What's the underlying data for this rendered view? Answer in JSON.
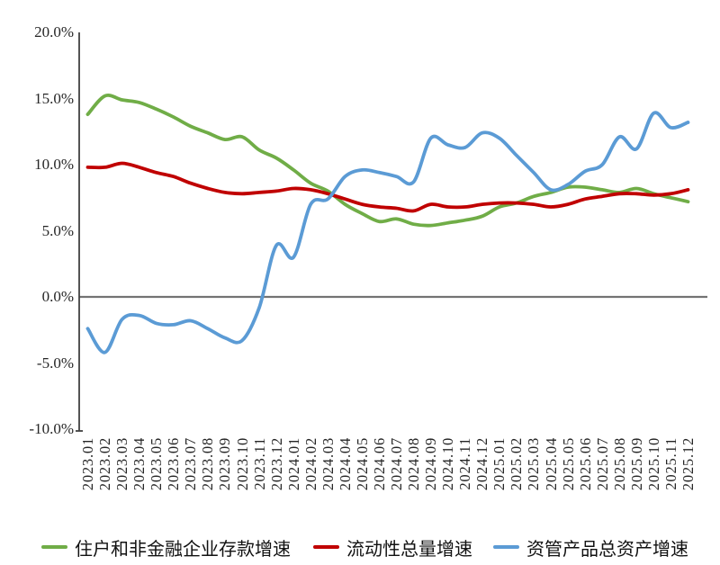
{
  "chart_data": {
    "type": "line",
    "title": "",
    "grid": false,
    "smoothed_lines": true,
    "legend_position": "bottom",
    "ylim": [
      -10,
      20
    ],
    "y_tick_labels": [
      "20.0%",
      "15.0%",
      "10.0%",
      "5.0%",
      "0.0%",
      "-5.0%",
      "-10.0%"
    ],
    "y_tick_values": [
      20,
      15,
      10,
      5,
      0,
      -5,
      -10
    ],
    "x_labels": [
      "2023.01",
      "2023.02",
      "2023.03",
      "2023.04",
      "2023.05",
      "2023.06",
      "2023.07",
      "2023.08",
      "2023.09",
      "2023.10",
      "2023.11",
      "2023.12",
      "2024.01",
      "2024.02",
      "2024.03",
      "2024.04",
      "2024.05",
      "2024.06",
      "2024.07",
      "2024.08",
      "2024.09",
      "2024.10",
      "2024.11",
      "2024.12",
      "2025.01",
      "2025.02",
      "2025.03",
      "2025.04",
      "2025.05",
      "2025.06",
      "2025.07",
      "2025.08",
      "2025.09",
      "2025.10",
      "2025.11",
      "2025.12"
    ],
    "series": [
      {
        "name": "住户和非金融企业存款增速",
        "color": "#70AD47",
        "values": [
          13.8,
          15.2,
          14.9,
          14.7,
          14.2,
          13.6,
          12.9,
          12.4,
          11.9,
          12.1,
          11.1,
          10.5,
          9.6,
          8.6,
          8.0,
          7.0,
          6.3,
          5.7,
          5.9,
          5.5,
          5.4,
          5.6,
          5.8,
          6.1,
          6.8,
          7.1,
          7.6,
          7.9,
          8.3,
          8.3,
          8.1,
          7.9,
          8.2,
          7.8,
          7.5,
          7.2
        ]
      },
      {
        "name": "流动性总量增速",
        "color": "#C00000",
        "values": [
          9.8,
          9.8,
          10.1,
          9.8,
          9.4,
          9.1,
          8.6,
          8.2,
          7.9,
          7.8,
          7.9,
          8.0,
          8.2,
          8.1,
          7.8,
          7.4,
          7.0,
          6.8,
          6.7,
          6.5,
          7.0,
          6.8,
          6.8,
          7.0,
          7.1,
          7.1,
          7.0,
          6.8,
          7.0,
          7.4,
          7.6,
          7.8,
          7.8,
          7.7,
          7.8,
          8.1
        ]
      },
      {
        "name": "资管产品总资产增速",
        "color": "#5B9BD5",
        "values": [
          -2.4,
          -4.2,
          -1.7,
          -1.4,
          -2.0,
          -2.1,
          -1.8,
          -2.4,
          -3.1,
          -3.3,
          -0.8,
          3.9,
          3.0,
          7.0,
          7.4,
          9.1,
          9.6,
          9.4,
          9.1,
          8.7,
          12.0,
          11.5,
          11.3,
          12.4,
          12.0,
          10.7,
          9.4,
          8.1,
          8.5,
          9.5,
          10.0,
          12.1,
          11.2,
          13.9,
          12.8,
          13.2
        ]
      }
    ],
    "axis_colors": {
      "y_axis": "#404040",
      "zero_line": "#737373"
    }
  }
}
